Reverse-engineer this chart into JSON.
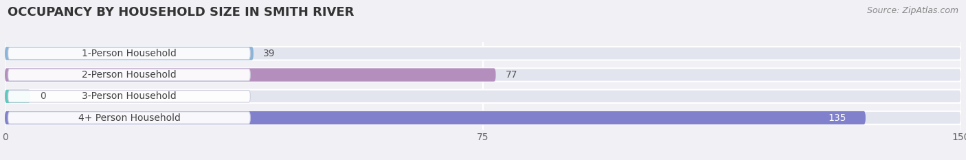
{
  "title": "OCCUPANCY BY HOUSEHOLD SIZE IN SMITH RIVER",
  "source": "Source: ZipAtlas.com",
  "categories": [
    "1-Person Household",
    "2-Person Household",
    "3-Person Household",
    "4+ Person Household"
  ],
  "values": [
    39,
    77,
    0,
    135
  ],
  "bar_colors": [
    "#8ab4d8",
    "#b48fbe",
    "#5ec8bc",
    "#8080cc"
  ],
  "bar_bg_color": "#e2e4ee",
  "xlim": [
    0,
    150
  ],
  "xticks": [
    0,
    75,
    150
  ],
  "title_fontsize": 13,
  "tick_fontsize": 10,
  "bar_label_fontsize": 10,
  "category_fontsize": 10,
  "background_color": "#f0f0f5"
}
